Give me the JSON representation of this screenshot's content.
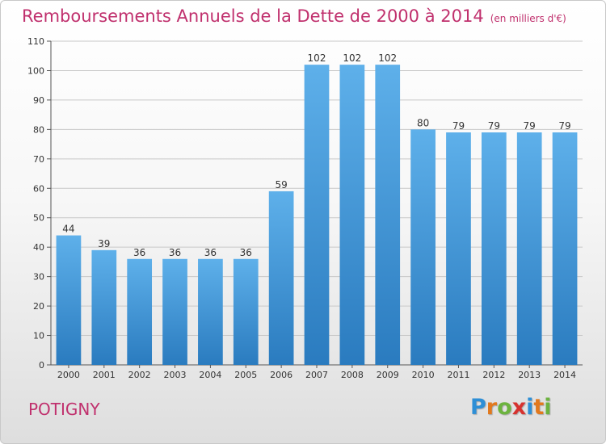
{
  "page_title": "Remboursements Annuels de la Dette de 2000 à 2014",
  "unit_note": "(en milliers d'€)",
  "commune_name": "POTIGNY",
  "logo": {
    "letters": [
      "P",
      "r",
      "o",
      "x",
      "i",
      "t",
      "i"
    ],
    "colors": [
      "#2e8fd6",
      "#e2791d",
      "#6cb33f",
      "#d6322f",
      "#2e8fd6",
      "#e2791d",
      "#6cb33f"
    ]
  },
  "chart_data": {
    "type": "bar",
    "title": "Remboursements Annuels de la Dette de 2000 à 2014",
    "subtitle": "(en milliers d'€)",
    "categories": [
      "2000",
      "2001",
      "2002",
      "2003",
      "2004",
      "2005",
      "2006",
      "2007",
      "2008",
      "2009",
      "2010",
      "2011",
      "2012",
      "2013",
      "2014"
    ],
    "values": [
      44,
      39,
      36,
      36,
      36,
      36,
      59,
      102,
      102,
      102,
      80,
      79,
      79,
      79,
      79
    ],
    "ylim": [
      0,
      110
    ],
    "yticks": [
      0,
      10,
      20,
      30,
      40,
      50,
      60,
      70,
      80,
      90,
      100,
      110
    ],
    "grid": true,
    "colors": {
      "bar_top": "#5eb0ea",
      "bar_bottom": "#2a7bbf",
      "grid": "#c8c8c8",
      "label": "#333333"
    }
  }
}
